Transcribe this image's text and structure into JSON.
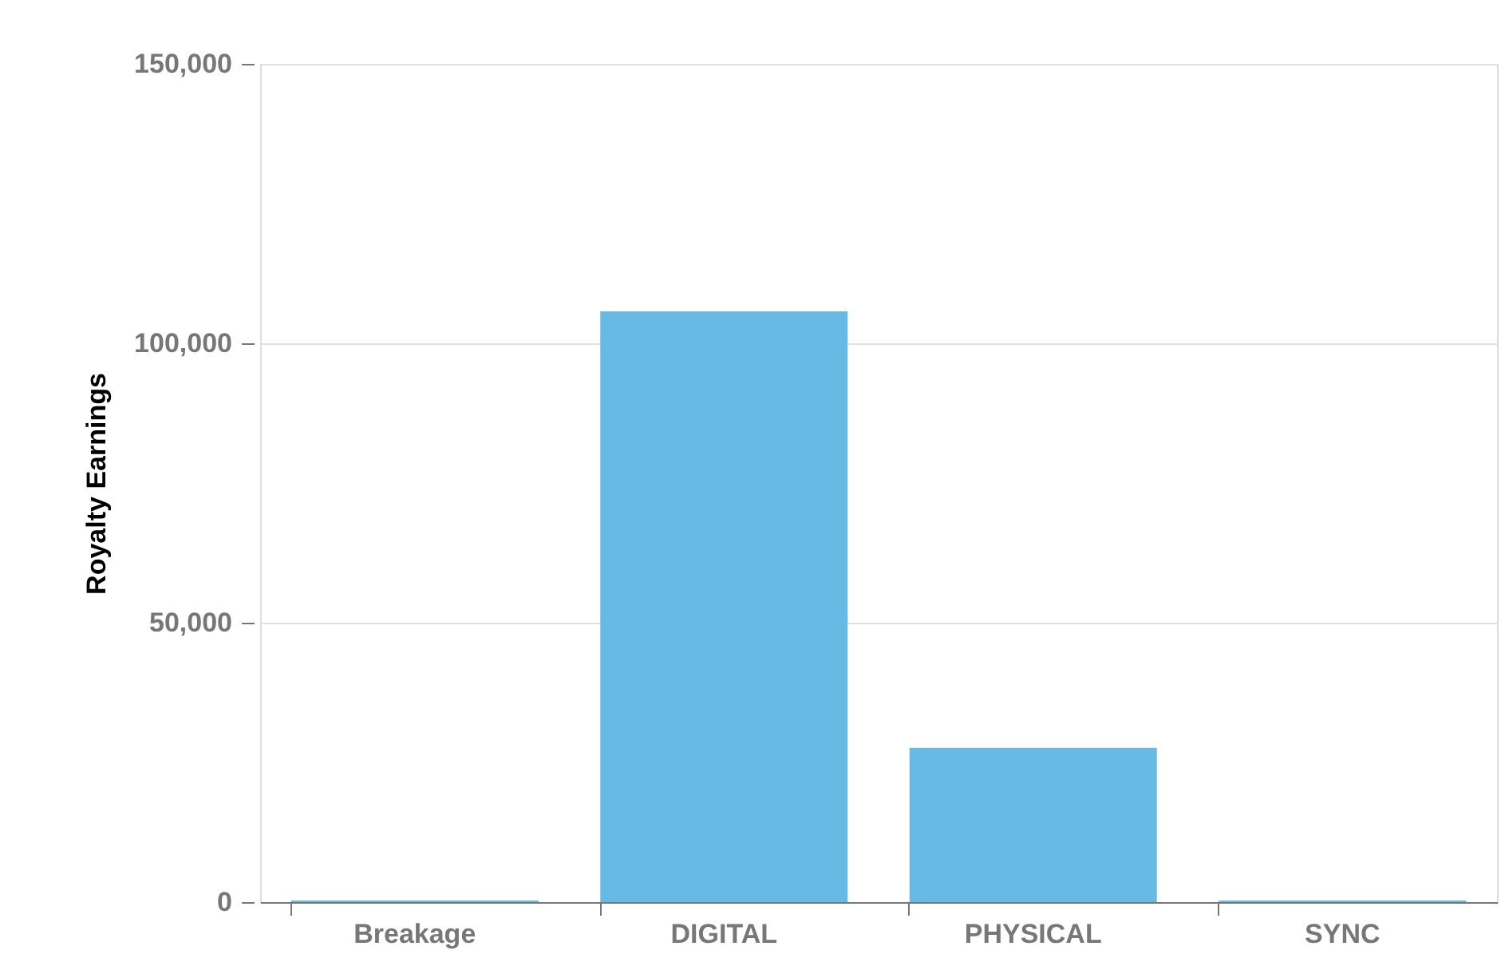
{
  "chart_data": {
    "type": "bar",
    "ylabel": "Royalty Earnings",
    "categories": [
      "Breakage",
      "DIGITAL",
      "PHYSICAL",
      "SYNC"
    ],
    "values": [
      300,
      105700,
      27600,
      300
    ],
    "color": "#66bae3",
    "ylim": [
      0,
      150000
    ],
    "yticks": [
      0,
      {
        "value": 50000,
        "label": "50,000"
      },
      {
        "value": 100000,
        "label": "100,000"
      },
      {
        "value": 150000,
        "label": "150,000"
      }
    ],
    "grid": "y"
  }
}
